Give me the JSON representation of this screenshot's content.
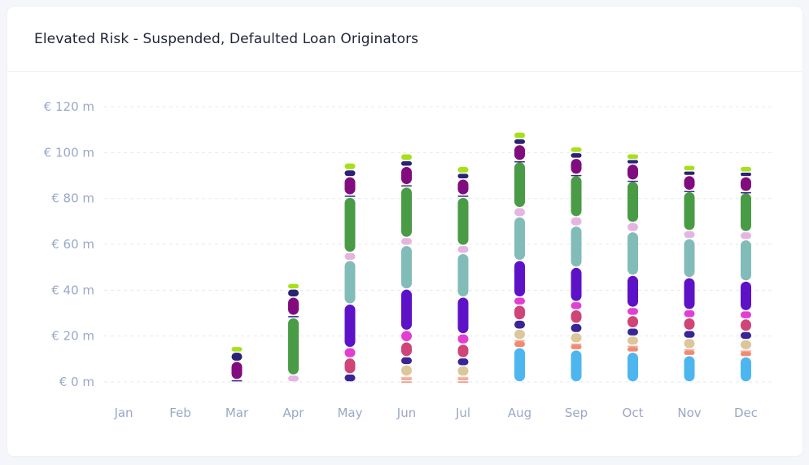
{
  "title": "Elevated Risk - Suspended, Defaulted Loan Originators",
  "chart_data": {
    "type": "bar",
    "title": "Elevated Risk - Suspended, Defaulted Loan Originators",
    "categories": [
      "Jan",
      "Feb",
      "Mar",
      "Apr",
      "May",
      "Jun",
      "Jul",
      "Aug",
      "Sep",
      "Oct",
      "Nov",
      "Dec"
    ],
    "y_ticks": [
      "€ 0 m",
      "€ 20 m",
      "€ 40 m",
      "€ 60 m",
      "€ 80 m",
      "€ 100 m",
      "€ 120 m"
    ],
    "ylim": [
      0,
      120
    ],
    "grid": true,
    "stacked": true,
    "series": [
      {
        "color": "#4db6ef",
        "values": [
          0,
          0,
          0,
          0,
          0,
          0,
          0,
          15,
          14,
          13,
          11.5,
          11
        ]
      },
      {
        "color": "#f08c6e",
        "values": [
          0,
          0,
          0,
          0,
          0,
          0.5,
          0.5,
          3,
          2.5,
          2.5,
          2.5,
          2.5
        ]
      },
      {
        "color": "#f3a3a0",
        "values": [
          0,
          0,
          0,
          0,
          0,
          1.5,
          1.5,
          0.5,
          0.5,
          0.5,
          0.5,
          0.5
        ]
      },
      {
        "color": "#f0c39e",
        "values": [
          0,
          0,
          0,
          0,
          0,
          0.5,
          0.5,
          0,
          0,
          0,
          0,
          0
        ]
      },
      {
        "color": "#dcc79a",
        "values": [
          0,
          0,
          0,
          0,
          0,
          5,
          4.5,
          4.5,
          4.5,
          4,
          4.5,
          4.5
        ]
      },
      {
        "color": "#3a2596",
        "values": [
          0,
          0,
          1,
          0,
          3.5,
          3.5,
          3.5,
          4,
          4,
          3.5,
          3.5,
          3.5
        ]
      },
      {
        "color": "#cf4578",
        "values": [
          0,
          0,
          0,
          0,
          7,
          6.5,
          6,
          6.5,
          6,
          5.5,
          5.5,
          5.5
        ]
      },
      {
        "color": "#e23fd2",
        "values": [
          0,
          0,
          0,
          0,
          4.5,
          5,
          4.5,
          3.5,
          3.5,
          3.5,
          3.5,
          3.5
        ]
      },
      {
        "color": "#5e12c8",
        "values": [
          0,
          0,
          0,
          0,
          19,
          18,
          16,
          16,
          15,
          14,
          14,
          13
        ]
      },
      {
        "color": "#82bcb8",
        "values": [
          0,
          0,
          0,
          0,
          19,
          19,
          19,
          19,
          18,
          19,
          17,
          18
        ]
      },
      {
        "color": "#e5b5e2",
        "values": [
          0,
          0,
          0,
          3,
          3.5,
          3.5,
          3.5,
          4,
          4,
          4,
          3.5,
          3.5
        ]
      },
      {
        "color": "#4a9b45",
        "values": [
          0,
          0,
          0,
          25,
          24,
          22,
          21,
          20,
          18,
          18,
          17,
          17
        ]
      },
      {
        "color": "#2f2b8a",
        "values": [
          0,
          0,
          0,
          1,
          1,
          1,
          1,
          0.5,
          0.5,
          0.5,
          0.5,
          0.5
        ]
      },
      {
        "color": "#800c7e",
        "values": [
          0,
          0,
          8,
          8,
          8,
          8,
          7,
          7,
          7,
          7,
          6.5,
          6.5
        ]
      },
      {
        "color": "#2b2175",
        "values": [
          0,
          0,
          4,
          3.5,
          3,
          2.5,
          2.5,
          2.5,
          2.5,
          2,
          2,
          2
        ]
      },
      {
        "color": "#a6e01b",
        "values": [
          0,
          0,
          2.5,
          2.5,
          3,
          3,
          3,
          3,
          2.5,
          2.5,
          2.5,
          2.5
        ]
      }
    ]
  }
}
